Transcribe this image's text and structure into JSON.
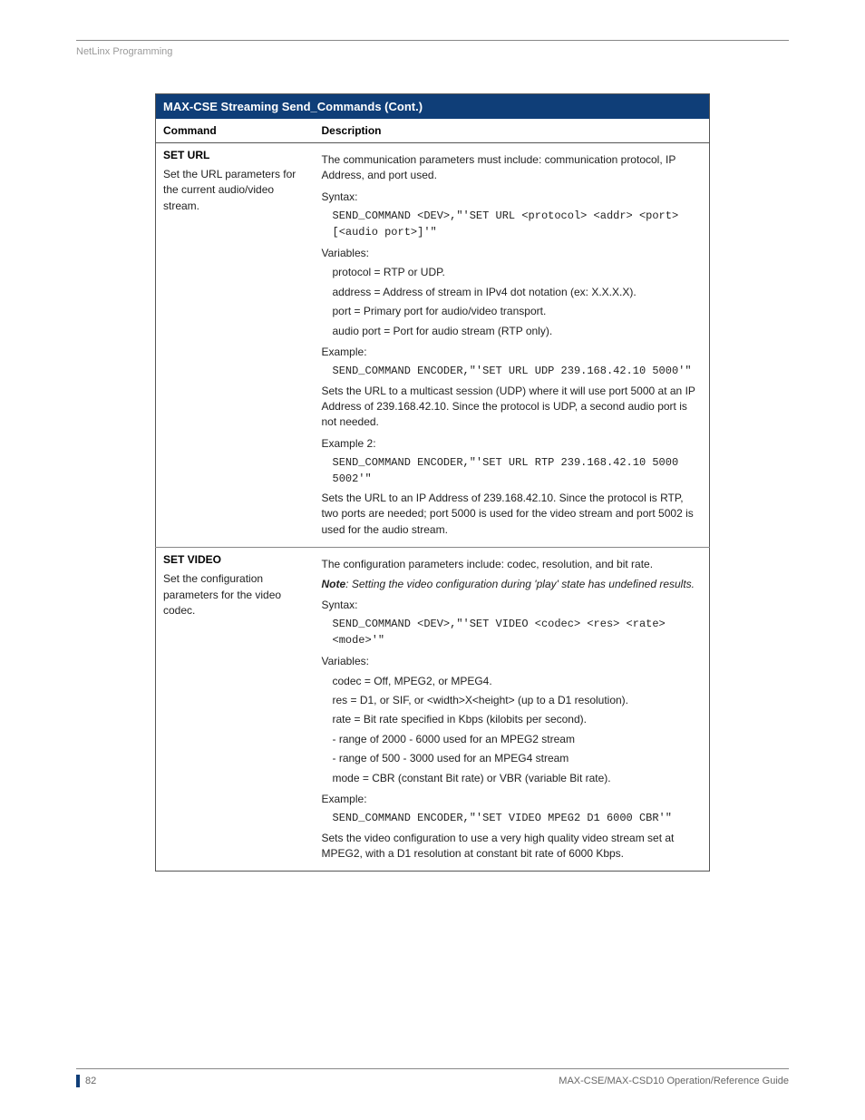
{
  "header": {
    "section_label": "NetLinx Programming"
  },
  "table": {
    "title": "MAX-CSE Streaming Send_Commands (Cont.)",
    "col1": "Command",
    "col2": "Description",
    "rows": [
      {
        "cmd_name": "SET URL",
        "cmd_desc": "Set the URL parameters for the current audio/video stream.",
        "desc": {
          "intro": "The communication parameters must include: communication protocol, IP Address, and port used.",
          "syntax_label": "Syntax:",
          "syntax_code": "SEND_COMMAND <DEV>,\"'SET URL <protocol> <addr> <port> [<audio port>]'\"",
          "vars_label": "Variables:",
          "var1": "protocol = RTP or UDP.",
          "var2": "address = Address of stream in IPv4 dot notation (ex: X.X.X.X).",
          "var3": "port = Primary port for audio/video transport.",
          "var4": "audio port = Port for audio stream (RTP only).",
          "ex1_label": "Example:",
          "ex1_code": "SEND_COMMAND ENCODER,\"'SET URL UDP 239.168.42.10 5000'\"",
          "ex1_text": "Sets the URL to a multicast session (UDP) where it will use port 5000 at an IP Address of 239.168.42.10. Since the protocol is UDP, a second audio port is not needed.",
          "ex2_label": "Example 2:",
          "ex2_code": "SEND_COMMAND ENCODER,\"'SET URL RTP 239.168.42.10 5000 5002'\"",
          "ex2_text": "Sets the URL to an IP Address of 239.168.42.10. Since the protocol is RTP, two ports are needed; port 5000 is used for the video stream and port 5002 is used for the audio stream."
        }
      },
      {
        "cmd_name": "SET VIDEO",
        "cmd_desc": "Set the configuration parameters for the video codec.",
        "desc": {
          "intro": "The configuration parameters include: codec, resolution, and bit rate.",
          "note_bold": "Note",
          "note_rest": ": Setting the video configuration during 'play' state has undefined results.",
          "syntax_label": "Syntax:",
          "syntax_code": "SEND_COMMAND <DEV>,\"'SET VIDEO <codec> <res> <rate> <mode>'\"",
          "vars_label": "Variables:",
          "var1": "codec = Off, MPEG2, or MPEG4.",
          "var2": "res = D1, or SIF, or <width>X<height> (up to a D1 resolution).",
          "var3": "rate = Bit rate specified in Kbps (kilobits per second).",
          "var4": "- range of 2000 - 6000 used for an MPEG2 stream",
          "var5": "- range of 500 - 3000 used for an MPEG4 stream",
          "var6": "mode = CBR (constant Bit rate) or VBR (variable Bit rate).",
          "ex1_label": "Example:",
          "ex1_code": "SEND_COMMAND ENCODER,\"'SET VIDEO MPEG2 D1 6000 CBR'\"",
          "ex1_text": "Sets the video configuration to use a very high quality video stream set at MPEG2, with a D1 resolution at constant bit rate of 6000 Kbps."
        }
      }
    ]
  },
  "footer": {
    "page": "82",
    "title": "MAX-CSE/MAX-CSD10 Operation/Reference Guide"
  },
  "colors": {
    "header_bg": "#0f3e78",
    "header_text": "#ffffff",
    "rule": "#888888",
    "muted": "#9a9a9a"
  }
}
